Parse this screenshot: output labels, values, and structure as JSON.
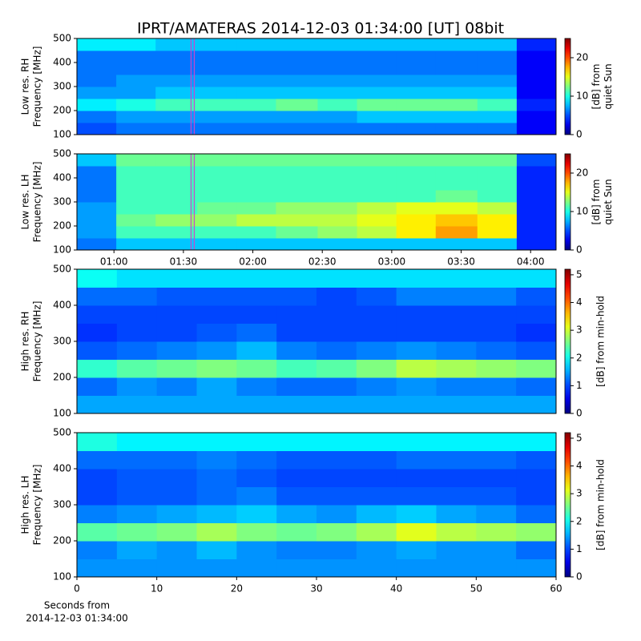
{
  "title": "IPRT/AMATERAS 2014-12-03 01:34:00 [UT]   08bit",
  "chart_data": [
    {
      "type": "heatmap",
      "colormap": "jet",
      "ylabel": [
        "Low res. RH",
        "Frequency [MHz]"
      ],
      "colorbar_label": [
        "[dB] from",
        "quiet Sun"
      ],
      "xlim": [
        44,
        251
      ],
      "ylim": [
        100,
        500
      ],
      "yticks": [
        100,
        200,
        300,
        400,
        500
      ],
      "clim": [
        0,
        25
      ],
      "cticks": [
        0,
        10,
        20
      ],
      "highlight_x": 94,
      "highlight_color": "#cc44cc",
      "x_bins": [
        44,
        61,
        78,
        96,
        113,
        130,
        148,
        165,
        182,
        199,
        217,
        234,
        251
      ],
      "y_bins": [
        100,
        150,
        200,
        250,
        300,
        350,
        400,
        450,
        500
      ],
      "z": [
        [
          5,
          6,
          6,
          6,
          6,
          6,
          6,
          6,
          6,
          6,
          6,
          3
        ],
        [
          6,
          7,
          7,
          7,
          7,
          7,
          7,
          8,
          8,
          8,
          8,
          3
        ],
        [
          9,
          10,
          11,
          11,
          11,
          12,
          11,
          12,
          12,
          12,
          11,
          4
        ],
        [
          7,
          7,
          8,
          8,
          8,
          8,
          8,
          8,
          8,
          8,
          8,
          3
        ],
        [
          6,
          7,
          7,
          7,
          7,
          7,
          7,
          7,
          7,
          7,
          7,
          3
        ],
        [
          6,
          6,
          6,
          6,
          6,
          6,
          6,
          6,
          6,
          6,
          6,
          3
        ],
        [
          6,
          6,
          6,
          6,
          6,
          6,
          6,
          6,
          6,
          6,
          6,
          3
        ],
        [
          9,
          9,
          8,
          8,
          8,
          8,
          8,
          8,
          8,
          8,
          8,
          4
        ]
      ]
    },
    {
      "type": "heatmap",
      "colormap": "jet",
      "ylabel": [
        "Low res. LH",
        "Frequency [MHz]"
      ],
      "colorbar_label": [
        "[dB] from",
        "quiet Sun"
      ],
      "xlim": [
        44,
        251
      ],
      "ylim": [
        100,
        500
      ],
      "yticks": [
        100,
        200,
        300,
        400,
        500
      ],
      "xticks": [
        {
          "value": 60,
          "label": "01:00"
        },
        {
          "value": 90,
          "label": "01:30"
        },
        {
          "value": 120,
          "label": "02:00"
        },
        {
          "value": 150,
          "label": "02:30"
        },
        {
          "value": 180,
          "label": "03:00"
        },
        {
          "value": 210,
          "label": "03:30"
        },
        {
          "value": 240,
          "label": "04:00"
        }
      ],
      "clim": [
        0,
        25
      ],
      "cticks": [
        0,
        10,
        20
      ],
      "highlight_x": 94,
      "highlight_color": "#cc44cc",
      "x_bins": [
        44,
        61,
        78,
        96,
        113,
        130,
        148,
        165,
        182,
        199,
        217,
        234,
        251
      ],
      "y_bins": [
        100,
        150,
        200,
        250,
        300,
        350,
        400,
        450,
        500
      ],
      "z": [
        [
          6,
          8,
          8,
          8,
          8,
          8,
          8,
          8,
          8,
          8,
          8,
          4
        ],
        [
          7,
          11,
          11,
          11,
          11,
          12,
          13,
          14,
          16,
          18,
          16,
          4
        ],
        [
          7,
          12,
          13,
          13,
          14,
          14,
          14,
          15,
          16,
          17,
          16,
          4
        ],
        [
          7,
          11,
          11,
          12,
          12,
          13,
          13,
          14,
          15,
          15,
          14,
          4
        ],
        [
          6,
          11,
          11,
          11,
          11,
          11,
          11,
          11,
          11,
          12,
          11,
          4
        ],
        [
          6,
          11,
          11,
          11,
          11,
          11,
          11,
          11,
          11,
          11,
          11,
          4
        ],
        [
          6,
          11,
          11,
          11,
          11,
          11,
          11,
          11,
          11,
          11,
          11,
          4
        ],
        [
          8,
          12,
          12,
          12,
          12,
          12,
          12,
          12,
          12,
          12,
          12,
          5
        ]
      ]
    },
    {
      "type": "heatmap",
      "colormap": "jet",
      "ylabel": [
        "High res. RH",
        "Frequency [MHz]"
      ],
      "colorbar_label": [
        "[dB] from min-hold"
      ],
      "xlim": [
        0,
        60
      ],
      "ylim": [
        100,
        500
      ],
      "yticks": [
        100,
        200,
        300,
        400,
        500
      ],
      "clim": [
        0,
        5.2
      ],
      "cticks": [
        0,
        1,
        2,
        3,
        4,
        5
      ],
      "x_bins": [
        0,
        5,
        10,
        15,
        20,
        25,
        30,
        35,
        40,
        45,
        50,
        55,
        60
      ],
      "y_bins": [
        100,
        150,
        200,
        250,
        300,
        350,
        400,
        450,
        500
      ],
      "z": [
        [
          1.5,
          1.5,
          1.5,
          1.5,
          1.5,
          1.5,
          1.5,
          1.5,
          1.5,
          1.5,
          1.5,
          1.5
        ],
        [
          1.2,
          1.4,
          1.3,
          1.5,
          1.3,
          1.2,
          1.2,
          1.3,
          1.4,
          1.3,
          1.3,
          1.2
        ],
        [
          2.2,
          2.4,
          2.5,
          2.6,
          2.5,
          2.3,
          2.4,
          2.6,
          2.9,
          2.8,
          2.7,
          2.6
        ],
        [
          1.1,
          1.2,
          1.3,
          1.4,
          1.6,
          1.3,
          1.2,
          1.3,
          1.4,
          1.3,
          1.2,
          1.1
        ],
        [
          0.9,
          1.0,
          1.0,
          1.1,
          1.2,
          1.0,
          1.0,
          1.0,
          1.0,
          1.0,
          1.0,
          0.9
        ],
        [
          1.0,
          1.0,
          1.0,
          1.0,
          1.0,
          1.0,
          1.0,
          1.0,
          1.0,
          1.0,
          1.0,
          1.0
        ],
        [
          1.2,
          1.2,
          1.1,
          1.1,
          1.1,
          1.1,
          1.0,
          1.1,
          1.3,
          1.3,
          1.3,
          1.1
        ],
        [
          2.0,
          1.8,
          1.8,
          1.8,
          1.8,
          1.8,
          1.8,
          1.8,
          1.8,
          1.8,
          1.8,
          1.8
        ]
      ]
    },
    {
      "type": "heatmap",
      "colormap": "jet",
      "ylabel": [
        "High res. LH",
        "Frequency [MHz]"
      ],
      "colorbar_label": [
        "[dB] from min-hold"
      ],
      "xlabel": [
        "Seconds from",
        "2014-12-03 01:34:00"
      ],
      "xlim": [
        0,
        60
      ],
      "xticks": [
        0,
        10,
        20,
        30,
        40,
        50,
        60
      ],
      "ylim": [
        100,
        500
      ],
      "yticks": [
        100,
        200,
        300,
        400,
        500
      ],
      "clim": [
        0,
        5.2
      ],
      "cticks": [
        0,
        1,
        2,
        3,
        4,
        5
      ],
      "x_bins": [
        0,
        5,
        10,
        15,
        20,
        25,
        30,
        35,
        40,
        45,
        50,
        55,
        60
      ],
      "y_bins": [
        100,
        150,
        200,
        250,
        300,
        350,
        400,
        450,
        500
      ],
      "z": [
        [
          1.4,
          1.4,
          1.4,
          1.4,
          1.4,
          1.4,
          1.4,
          1.4,
          1.4,
          1.4,
          1.4,
          1.4
        ],
        [
          1.3,
          1.5,
          1.4,
          1.6,
          1.4,
          1.3,
          1.3,
          1.4,
          1.5,
          1.4,
          1.4,
          1.2
        ],
        [
          2.4,
          2.5,
          2.6,
          2.8,
          2.6,
          2.5,
          2.6,
          2.8,
          3.1,
          2.9,
          2.8,
          2.7
        ],
        [
          1.3,
          1.4,
          1.5,
          1.6,
          1.7,
          1.5,
          1.4,
          1.6,
          1.7,
          1.5,
          1.4,
          1.2
        ],
        [
          1.0,
          1.1,
          1.1,
          1.2,
          1.3,
          1.1,
          1.1,
          1.1,
          1.1,
          1.1,
          1.1,
          1.0
        ],
        [
          1.0,
          1.1,
          1.1,
          1.2,
          1.1,
          1.0,
          1.0,
          1.0,
          1.0,
          1.0,
          1.0,
          1.0
        ],
        [
          1.2,
          1.2,
          1.2,
          1.3,
          1.2,
          1.1,
          1.1,
          1.1,
          1.2,
          1.2,
          1.2,
          1.1
        ],
        [
          2.1,
          1.9,
          1.9,
          1.9,
          1.9,
          1.9,
          1.9,
          1.9,
          1.9,
          1.9,
          1.9,
          1.9
        ]
      ]
    }
  ]
}
